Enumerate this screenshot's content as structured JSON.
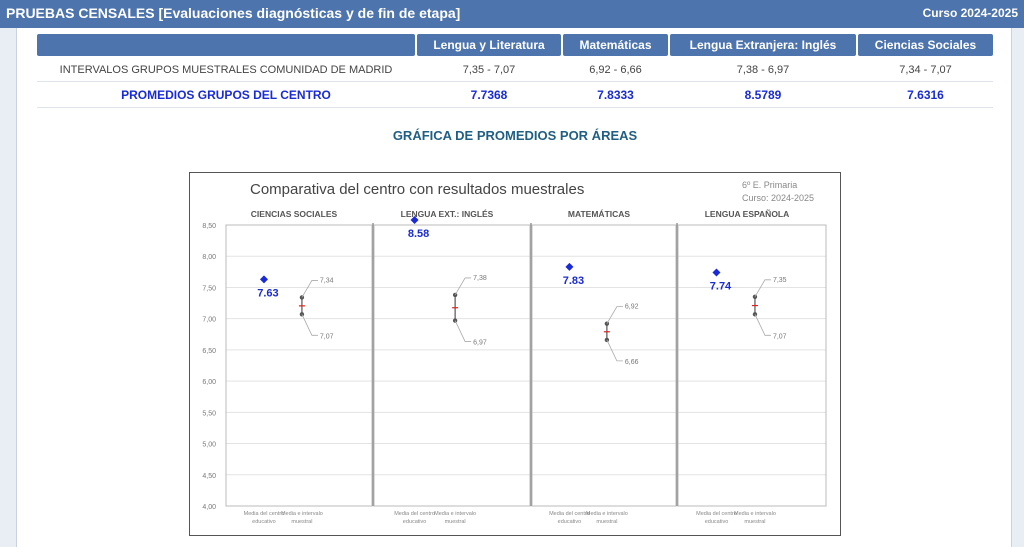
{
  "header": {
    "title": "PRUEBAS CENSALES [Evaluaciones diagnósticas y de fin de etapa]",
    "course": "Curso 2024-2025"
  },
  "table": {
    "columns": [
      "Lengua y Literatura",
      "Matemáticas",
      "Lengua Extranjera: Inglés",
      "Ciencias Sociales"
    ],
    "rows": [
      {
        "label": "INTERVALOS GRUPOS MUESTRALES COMUNIDAD DE MADRID",
        "values": [
          "7,35 - 7,07",
          "6,92 - 6,66",
          "7,38 - 6,97",
          "7,34 - 7,07"
        ]
      },
      {
        "label": "PROMEDIOS GRUPOS DEL CENTRO",
        "values": [
          "7.7368",
          "7.8333",
          "8.5789",
          "7.6316"
        ]
      }
    ]
  },
  "section_title": "GRÁFICA DE PROMEDIOS POR ÁREAS",
  "chart_data": {
    "type": "scatter",
    "title": "Comparativa del centro con resultados muestrales",
    "subtitle_lines": [
      "6º E. Primaria",
      "Curso: 2024-2025"
    ],
    "ylim": [
      4.0,
      8.5
    ],
    "y_ticks": [
      "4,00",
      "4,50",
      "5,00",
      "5,50",
      "6,00",
      "6,50",
      "7,00",
      "7,50",
      "8,00",
      "8,50"
    ],
    "x_labels": [
      "Media del centro educativo",
      "Media e intervalo muestral"
    ],
    "grid": true,
    "panels": [
      {
        "name": "CIENCIAS SOCIALES",
        "school_mean": 7.63,
        "school_label": "7.63",
        "interval_high": 7.34,
        "interval_low": 7.07,
        "high_label": "7,34",
        "low_label": "7,07"
      },
      {
        "name": "LENGUA EXT.: INGLÉS",
        "school_mean": 8.58,
        "school_label": "8.58",
        "interval_high": 7.38,
        "interval_low": 6.97,
        "high_label": "7,38",
        "low_label": "6,97"
      },
      {
        "name": "MATEMÁTICAS",
        "school_mean": 7.83,
        "school_label": "7.83",
        "interval_high": 6.92,
        "interval_low": 6.66,
        "high_label": "6,92",
        "low_label": "6,66"
      },
      {
        "name": "LENGUA ESPAÑOLA",
        "school_mean": 7.74,
        "school_label": "7.74",
        "interval_high": 7.35,
        "interval_low": 7.07,
        "high_label": "7,35",
        "low_label": "7,07"
      }
    ],
    "colors": {
      "school": "#1a2bd6",
      "interval": "#555555",
      "interval_mid": "#e02020",
      "grid": "#e3e3e3"
    }
  }
}
